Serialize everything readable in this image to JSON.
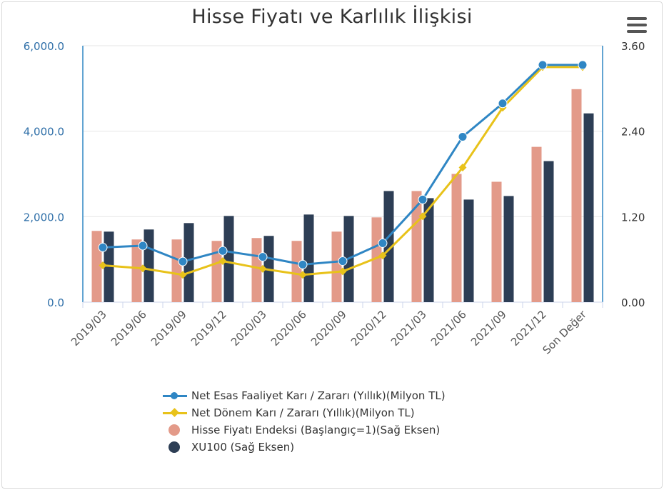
{
  "title": "Hisse Fiyatı ve Karlılık İlişkisi",
  "colors": {
    "net_esas": "#2f86c4",
    "net_donem": "#e8c21a",
    "hisse": "#e39a89",
    "xu100": "#2d3e55"
  },
  "menu_icon": "hamburger-menu-icon",
  "chart_data": {
    "type": "bar+line",
    "categories": [
      "2019/03",
      "2019/06",
      "2019/09",
      "2019/12",
      "2020/03",
      "2020/06",
      "2020/09",
      "2020/12",
      "2021/03",
      "2021/06",
      "2021/09",
      "2021/12",
      "Son Değer"
    ],
    "left_axis": {
      "min": 0,
      "max": 6000,
      "ticks": [
        "0.0",
        "2,000.0",
        "4,000.0",
        "6,000.0"
      ]
    },
    "right_axis": {
      "min": 0,
      "max": 3.6,
      "ticks": [
        "0.00",
        "1.20",
        "2.40",
        "3.60"
      ]
    },
    "grid": true,
    "legend_position": "bottom",
    "series": [
      {
        "name": "Net Esas Faaliyet Karı / Zararı (Yıllık)(Milyon TL)",
        "kind": "line",
        "marker": "circle",
        "axis": "left",
        "values": [
          1280,
          1320,
          950,
          1200,
          1060,
          880,
          960,
          1380,
          2400,
          3870,
          4650,
          5550,
          5550
        ]
      },
      {
        "name": "Net Dönem Karı / Zararı (Yıllık)(Milyon TL)",
        "kind": "line",
        "marker": "diamond",
        "axis": "left",
        "values": [
          860,
          790,
          640,
          960,
          780,
          640,
          720,
          1090,
          2010,
          3150,
          4550,
          5500,
          5500
        ]
      },
      {
        "name": "Hisse Fiyatı Endeksi (Başlangıç=1)(Sağ Eksen)",
        "kind": "bar",
        "axis": "right",
        "values": [
          1.0,
          0.88,
          0.88,
          0.86,
          0.9,
          0.86,
          0.99,
          1.19,
          1.56,
          1.8,
          1.69,
          2.18,
          2.99
        ]
      },
      {
        "name": "XU100 (Sağ Eksen)",
        "kind": "bar",
        "axis": "right",
        "values": [
          0.99,
          1.02,
          1.11,
          1.21,
          0.93,
          1.23,
          1.21,
          1.56,
          1.46,
          1.44,
          1.49,
          1.98,
          2.65
        ]
      }
    ]
  }
}
